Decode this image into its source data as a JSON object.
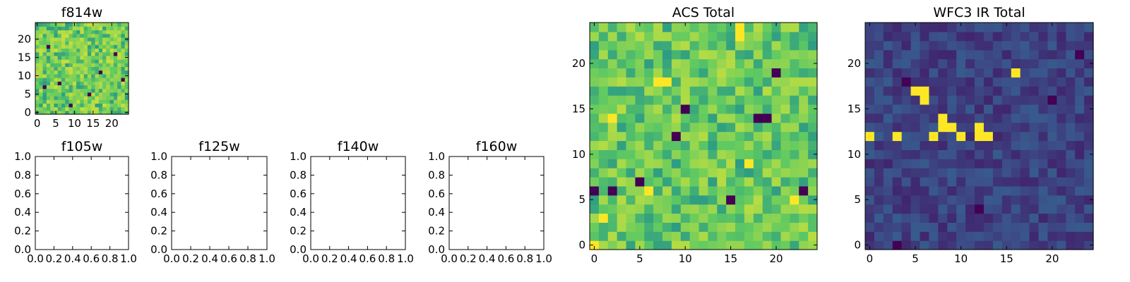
{
  "figure": {
    "colormap": [
      "#440154",
      "#3b528b",
      "#21918c",
      "#5ec962",
      "#a6d94a",
      "#fde725"
    ],
    "frame_color": "#000000",
    "background": "#ffffff"
  },
  "chart_data": [
    {
      "id": "f814w",
      "type": "heatmap",
      "title": "f814w",
      "grid_size": 25,
      "xlim": [
        -0.5,
        24.5
      ],
      "ylim": [
        -0.5,
        24.5
      ],
      "xticks": [
        0,
        5,
        10,
        15,
        20
      ],
      "yticks": [
        0,
        5,
        10,
        15,
        20
      ],
      "value_range": [
        0,
        1
      ],
      "seed": 1,
      "base": 0.66,
      "noise": 0.22,
      "cold_pixels": [
        [
          6,
          8
        ],
        [
          14,
          5
        ],
        [
          3,
          18
        ],
        [
          21,
          16
        ],
        [
          9,
          2
        ],
        [
          17,
          11
        ],
        [
          2,
          7
        ],
        [
          23,
          9
        ]
      ],
      "hot_pixels": [],
      "blobs": []
    },
    {
      "id": "f105w",
      "type": "empty",
      "title": "f105w",
      "xlim": [
        0,
        1
      ],
      "ylim": [
        0,
        1
      ],
      "xticks": [
        "0.0",
        "0.2",
        "0.4",
        "0.6",
        "0.8",
        "1.0"
      ],
      "yticks": [
        "0.0",
        "0.2",
        "0.4",
        "0.6",
        "0.8",
        "1.0"
      ]
    },
    {
      "id": "f125w",
      "type": "empty",
      "title": "f125w",
      "xlim": [
        0,
        1
      ],
      "ylim": [
        0,
        1
      ],
      "xticks": [
        "0.0",
        "0.2",
        "0.4",
        "0.6",
        "0.8",
        "1.0"
      ],
      "yticks": [
        "0.0",
        "0.2",
        "0.4",
        "0.6",
        "0.8",
        "1.0"
      ]
    },
    {
      "id": "f140w",
      "type": "empty",
      "title": "f140w",
      "xlim": [
        0,
        1
      ],
      "ylim": [
        0,
        1
      ],
      "xticks": [
        "0.0",
        "0.2",
        "0.4",
        "0.6",
        "0.8",
        "1.0"
      ],
      "yticks": [
        "0.0",
        "0.2",
        "0.4",
        "0.6",
        "0.8",
        "1.0"
      ]
    },
    {
      "id": "f160w",
      "type": "empty",
      "title": "f160w",
      "xlim": [
        0,
        1
      ],
      "ylim": [
        0,
        1
      ],
      "xticks": [
        "0.0",
        "0.2",
        "0.4",
        "0.6",
        "0.8",
        "1.0"
      ],
      "yticks": [
        "0.0",
        "0.2",
        "0.4",
        "0.6",
        "0.8",
        "1.0"
      ]
    },
    {
      "id": "acs-total",
      "type": "heatmap",
      "title": "ACS Total",
      "grid_size": 25,
      "xlim": [
        -0.5,
        24.5
      ],
      "ylim": [
        -0.5,
        24.5
      ],
      "xticks": [
        0,
        5,
        10,
        15,
        20
      ],
      "yticks": [
        0,
        5,
        10,
        15,
        20
      ],
      "value_range": [
        0,
        1
      ],
      "seed": 7,
      "base": 0.64,
      "noise": 0.2,
      "cold_pixels": [
        [
          18,
          14
        ],
        [
          19,
          14
        ],
        [
          20,
          19
        ],
        [
          10,
          15
        ],
        [
          5,
          7
        ],
        [
          2,
          6
        ],
        [
          23,
          6
        ],
        [
          15,
          5
        ],
        [
          0,
          6
        ],
        [
          9,
          12
        ]
      ],
      "hot_pixels": [
        [
          16,
          23
        ],
        [
          16,
          24
        ],
        [
          17,
          9
        ],
        [
          7,
          18
        ],
        [
          8,
          18
        ],
        [
          6,
          6
        ],
        [
          2,
          14
        ],
        [
          1,
          3
        ],
        [
          0,
          0
        ],
        [
          22,
          5
        ]
      ],
      "blobs": []
    },
    {
      "id": "wfc3-ir-total",
      "type": "heatmap",
      "title": "WFC3 IR Total",
      "grid_size": 25,
      "xlim": [
        -0.5,
        24.5
      ],
      "ylim": [
        -0.5,
        24.5
      ],
      "xticks": [
        0,
        5,
        10,
        15,
        20
      ],
      "yticks": [
        0,
        5,
        10,
        15,
        20
      ],
      "value_range": [
        0,
        1
      ],
      "seed": 13,
      "base": 0.16,
      "noise": 0.07,
      "cold_pixels": [
        [
          3,
          0
        ],
        [
          4,
          18
        ],
        [
          12,
          4
        ],
        [
          20,
          16
        ],
        [
          23,
          21
        ]
      ],
      "hot_pixels": [
        [
          5,
          17
        ],
        [
          6,
          17
        ],
        [
          7,
          12
        ],
        [
          8,
          13
        ],
        [
          9,
          13
        ],
        [
          10,
          12
        ],
        [
          8,
          14
        ],
        [
          3,
          12
        ],
        [
          12,
          12
        ],
        [
          12,
          13
        ],
        [
          0,
          12
        ],
        [
          6,
          16
        ],
        [
          13,
          12
        ],
        [
          16,
          19
        ]
      ],
      "blobs": []
    }
  ]
}
